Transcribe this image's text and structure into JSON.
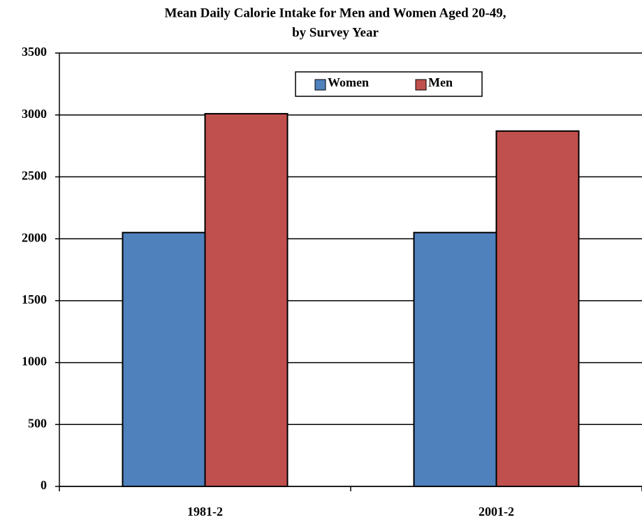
{
  "chart_data": {
    "type": "bar",
    "title": [
      "Mean Daily Calorie Intake for Men and Women Aged 20-49,",
      "by Survey Year"
    ],
    "categories": [
      "1981-2",
      "2001-2"
    ],
    "series": [
      {
        "name": "Women",
        "color": "#4f81bd",
        "values": [
          2050,
          2050
        ]
      },
      {
        "name": "Men",
        "color": "#c0504d",
        "values": [
          3010,
          2870
        ]
      }
    ],
    "ylim": [
      0,
      3500
    ],
    "yticks": [
      0,
      500,
      1000,
      1500,
      2000,
      2500,
      3000,
      3500
    ],
    "grid": true,
    "legend": "top"
  }
}
